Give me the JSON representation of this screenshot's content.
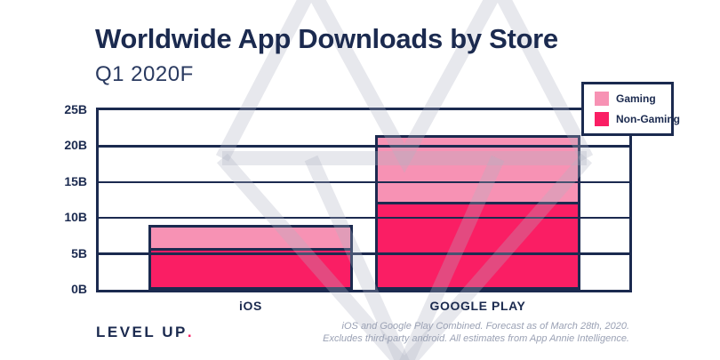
{
  "colors": {
    "navy": "#1B2A4F",
    "gaming_pink": "#F792B4",
    "non_gaming_pink": "#FA1E64",
    "watermark_gray": "#E9EBEF",
    "footnote_gray": "#9AA1B4",
    "background": "#FFFFFF"
  },
  "header": {
    "title": "Worldwide App Downloads by Store",
    "subtitle": "Q1 2020F"
  },
  "chart_data": {
    "type": "bar",
    "stacked": true,
    "title": "Worldwide App Downloads by Store",
    "subtitle": "Q1 2020F",
    "categories": [
      "iOS",
      "GOOGLE PLAY"
    ],
    "series": [
      {
        "name": "Gaming",
        "color": "#F792B4",
        "values": [
          3.2,
          9.4
        ]
      },
      {
        "name": "Non-Gaming",
        "color": "#FA1E64",
        "values": [
          5.8,
          12.1
        ]
      }
    ],
    "totals": [
      9.0,
      21.5
    ],
    "unit": "billions of downloads",
    "ylim": [
      0,
      25
    ],
    "ytick_interval": 5,
    "yticks": [
      "0B",
      "5B",
      "10B",
      "15B",
      "20B",
      "25B"
    ],
    "grid": true,
    "legend_position": "top-right"
  },
  "footer": {
    "logo": "LEVEL UP",
    "logo_dot": ".",
    "footnote_line1": "iOS and Google Play Combined. Forecast as of March 28th, 2020.",
    "footnote_line2": "Excludes third-party android. All estimates from App Annie Intelligence."
  }
}
